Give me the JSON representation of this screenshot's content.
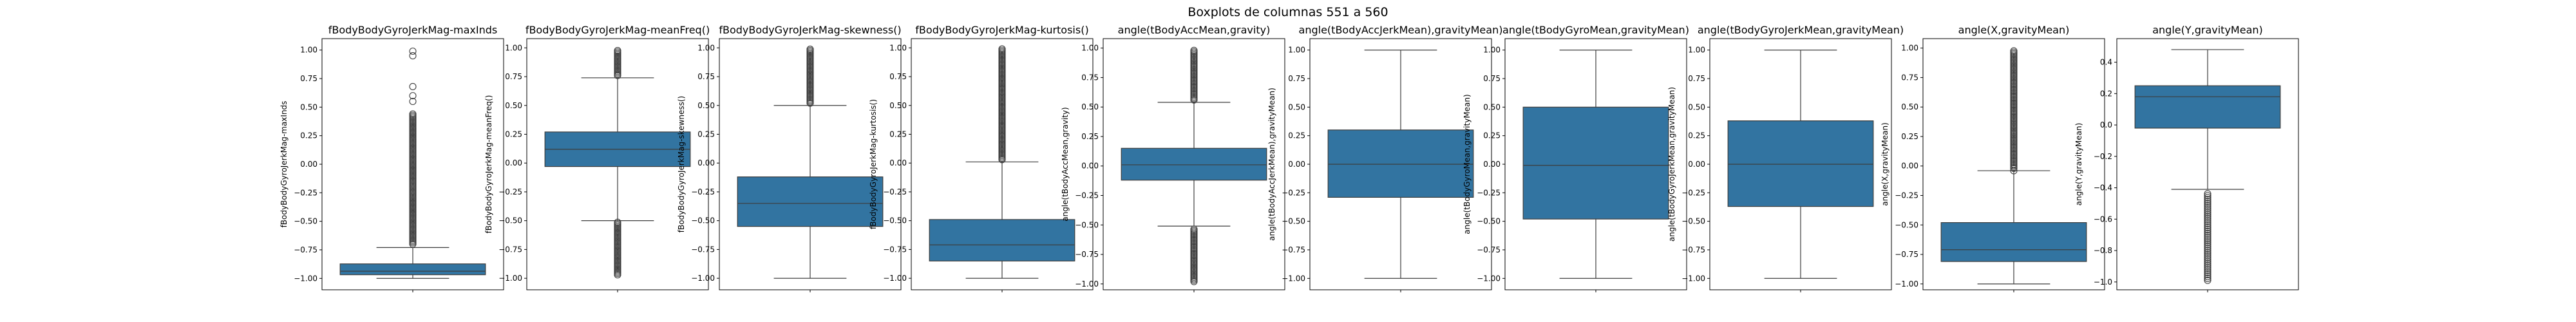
{
  "figure": {
    "title": "Boxplots de columnas 551 a 560"
  },
  "colors": {
    "box_fill": "#3274a1",
    "line": "#3d3d3d",
    "axis": "#000000"
  },
  "chart_data": [
    {
      "type": "box",
      "title": "fBodyBodyGyroJerkMag-maxInds",
      "ylabel": "fBodyBodyGyroJerkMag-maxInds",
      "ylim": [
        -1.1,
        1.1
      ],
      "yticks": [
        -1.0,
        -0.75,
        -0.5,
        -0.25,
        0.0,
        0.25,
        0.5,
        0.75,
        1.0
      ],
      "ytick_labels": [
        "−1.00",
        "−0.75",
        "−0.50",
        "−0.25",
        "0.00",
        "0.25",
        "0.50",
        "0.75",
        "1.00"
      ],
      "box": {
        "whisker_low": -1.0,
        "q1": -0.968,
        "median": -0.937,
        "q3": -0.873,
        "whisker_high": -0.73
      },
      "outliers_high": {
        "from": -0.7,
        "to": 0.45,
        "dense": true,
        "extra": [
          0.55,
          0.6,
          0.68,
          0.95,
          0.99
        ]
      },
      "outliers_low": null
    },
    {
      "type": "box",
      "title": "fBodyBodyGyroJerkMag-meanFreq()",
      "ylabel": "fBodyBodyGyroJerkMag-meanFreq()",
      "ylim": [
        -1.1,
        1.08
      ],
      "yticks": [
        -1.0,
        -0.75,
        -0.5,
        -0.25,
        0.0,
        0.25,
        0.5,
        0.75,
        1.0
      ],
      "ytick_labels": [
        "−1.00",
        "−0.75",
        "−0.50",
        "−0.25",
        "0.00",
        "0.25",
        "0.50",
        "0.75",
        "1.00"
      ],
      "box": {
        "whisker_low": -0.5,
        "q1": -0.03,
        "median": 0.12,
        "q3": 0.27,
        "whisker_high": 0.74
      },
      "outliers_high": {
        "from": 0.76,
        "to": 0.98,
        "dense": true,
        "extra": []
      },
      "outliers_low": {
        "from": -0.97,
        "to": -0.51,
        "dense": true,
        "extra": []
      }
    },
    {
      "type": "box",
      "title": "fBodyBodyGyroJerkMag-skewness()",
      "ylabel": "fBodyBodyGyroJerkMag-skewness()",
      "ylim": [
        -1.1,
        1.08
      ],
      "yticks": [
        -1.0,
        -0.75,
        -0.5,
        -0.25,
        0.0,
        0.25,
        0.5,
        0.75,
        1.0
      ],
      "ytick_labels": [
        "−1.00",
        "−0.75",
        "−0.50",
        "−0.25",
        "0.00",
        "0.25",
        "0.50",
        "0.75",
        "1.00"
      ],
      "box": {
        "whisker_low": -1.0,
        "q1": -0.55,
        "median": -0.35,
        "q3": -0.12,
        "whisker_high": 0.5
      },
      "outliers_high": {
        "from": 0.52,
        "to": 0.99,
        "dense": true,
        "extra": []
      },
      "outliers_low": null
    },
    {
      "type": "box",
      "title": "fBodyBodyGyroJerkMag-kurtosis()",
      "ylabel": "fBodyBodyGyroJerkMag-kurtosis()",
      "ylim": [
        -1.1,
        1.08
      ],
      "yticks": [
        -1.0,
        -0.75,
        -0.5,
        -0.25,
        0.0,
        0.25,
        0.5,
        0.75,
        1.0
      ],
      "ytick_labels": [
        "−1.00",
        "−0.75",
        "−0.50",
        "−0.25",
        "0.00",
        "0.25",
        "0.50",
        "0.75",
        "1.00"
      ],
      "box": {
        "whisker_low": -1.0,
        "q1": -0.85,
        "median": -0.71,
        "q3": -0.49,
        "whisker_high": 0.01
      },
      "outliers_high": {
        "from": 0.03,
        "to": 0.99,
        "dense": true,
        "extra": []
      },
      "outliers_low": null
    },
    {
      "type": "box",
      "title": "angle(tBodyAccMean,gravity)",
      "ylabel": "angle(tBodyAccMean,gravity)",
      "ylim": [
        -1.05,
        1.08
      ],
      "yticks": [
        -1.0,
        -0.75,
        -0.5,
        -0.25,
        0.0,
        0.25,
        0.5,
        0.75,
        1.0
      ],
      "ytick_labels": [
        "−1.00",
        "−0.75",
        "−0.50",
        "−0.25",
        "0.00",
        "0.25",
        "0.50",
        "0.75",
        "1.00"
      ],
      "box": {
        "whisker_low": -0.51,
        "q1": -0.12,
        "median": 0.01,
        "q3": 0.15,
        "whisker_high": 0.54
      },
      "outliers_high": {
        "from": 0.56,
        "to": 0.99,
        "dense": true,
        "extra": []
      },
      "outliers_low": {
        "from": -0.98,
        "to": -0.53,
        "dense": true,
        "extra": []
      }
    },
    {
      "type": "box",
      "title": "angle(tBodyAccJerkMean),gravityMean)",
      "ylabel": "angle(tBodyAccJerkMean),gravityMean)",
      "ylim": [
        -1.1,
        1.1
      ],
      "yticks": [
        -1.0,
        -0.75,
        -0.5,
        -0.25,
        0.0,
        0.25,
        0.5,
        0.75,
        1.0
      ],
      "ytick_labels": [
        "−1.00",
        "−0.75",
        "−0.50",
        "−0.25",
        "0.00",
        "0.25",
        "0.50",
        "0.75",
        "1.00"
      ],
      "box": {
        "whisker_low": -1.0,
        "q1": -0.29,
        "median": 0.0,
        "q3": 0.3,
        "whisker_high": 1.0
      },
      "outliers_high": null,
      "outliers_low": null
    },
    {
      "type": "box",
      "title": "angle(tBodyGyroMean,gravityMean)",
      "ylabel": "angle(tBodyGyroMean,gravityMean)",
      "ylim": [
        -1.1,
        1.1
      ],
      "yticks": [
        -1.0,
        -0.75,
        -0.5,
        -0.25,
        0.0,
        0.25,
        0.5,
        0.75,
        1.0
      ],
      "ytick_labels": [
        "−1.00",
        "−0.75",
        "−0.50",
        "−0.25",
        "0.00",
        "0.25",
        "0.50",
        "0.75",
        "1.00"
      ],
      "box": {
        "whisker_low": -1.0,
        "q1": -0.48,
        "median": -0.01,
        "q3": 0.5,
        "whisker_high": 1.0
      },
      "outliers_high": null,
      "outliers_low": null
    },
    {
      "type": "box",
      "title": "angle(tBodyGyroJerkMean,gravityMean)",
      "ylabel": "angle(tBodyGyroJerkMean,gravityMean)",
      "ylim": [
        -1.1,
        1.1
      ],
      "yticks": [
        -1.0,
        -0.75,
        -0.5,
        -0.25,
        0.0,
        0.25,
        0.5,
        0.75,
        1.0
      ],
      "ytick_labels": [
        "−1.00",
        "−0.75",
        "−0.50",
        "−0.25",
        "0.00",
        "0.25",
        "0.50",
        "0.75",
        "1.00"
      ],
      "box": {
        "whisker_low": -1.0,
        "q1": -0.37,
        "median": 0.0,
        "q3": 0.38,
        "whisker_high": 1.0
      },
      "outliers_high": null,
      "outliers_low": null
    },
    {
      "type": "box",
      "title": "angle(X,gravityMean)",
      "ylabel": "angle(X,gravityMean)",
      "ylim": [
        -1.05,
        1.08
      ],
      "yticks": [
        -1.0,
        -0.75,
        -0.5,
        -0.25,
        0.0,
        0.25,
        0.5,
        0.75,
        1.0
      ],
      "ytick_labels": [
        "−1.00",
        "−0.75",
        "−0.50",
        "−0.25",
        "0.00",
        "0.25",
        "0.50",
        "0.75",
        "1.00"
      ],
      "box": {
        "whisker_low": -1.0,
        "q1": -0.81,
        "median": -0.71,
        "q3": -0.48,
        "whisker_high": -0.04
      },
      "outliers_high": {
        "from": -0.02,
        "to": 0.98,
        "dense": true,
        "extra": [
          -0.04
        ]
      },
      "outliers_low": null
    },
    {
      "type": "box",
      "title": "angle(Y,gravityMean)",
      "ylabel": "angle(Y,gravityMean)",
      "ylim": [
        -1.05,
        0.55
      ],
      "yticks": [
        -1.0,
        -0.8,
        -0.6,
        -0.4,
        -0.2,
        0.0,
        0.2,
        0.4
      ],
      "ytick_labels": [
        "−1.0",
        "−0.8",
        "−0.6",
        "−0.4",
        "−0.2",
        "0.0",
        "0.2",
        "0.4"
      ],
      "box": {
        "whisker_low": -0.41,
        "q1": -0.02,
        "median": 0.18,
        "q3": 0.25,
        "whisker_high": 0.48
      },
      "outliers_high": null,
      "outliers_low": {
        "from": -0.99,
        "to": -0.43,
        "dense": true,
        "extra": []
      }
    }
  ]
}
